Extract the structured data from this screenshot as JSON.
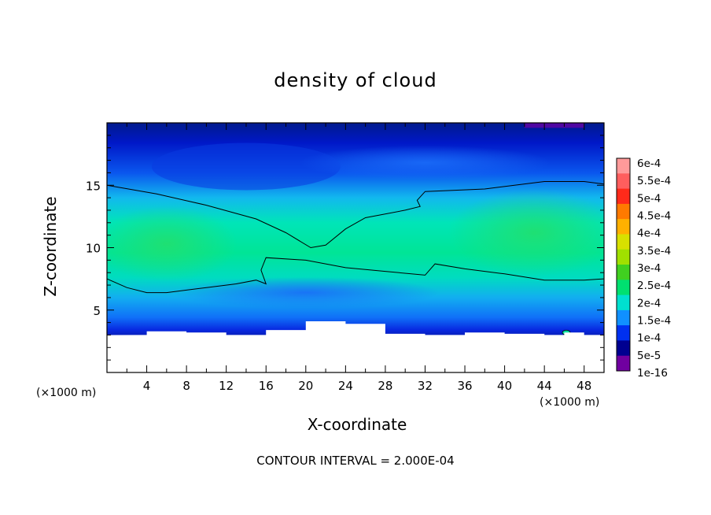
{
  "chart_data": {
    "type": "heatmap",
    "title": "density of cloud",
    "xlabel": "X-coordinate",
    "ylabel": "Z-coordinate",
    "x_unit": "(×1000 m)",
    "x_unit_right": "(×1000 m)",
    "xlim": [
      0,
      50
    ],
    "ylim": [
      0,
      20
    ],
    "x_ticks": [
      4,
      8,
      12,
      16,
      20,
      24,
      28,
      32,
      36,
      40,
      44,
      48
    ],
    "y_ticks": [
      5,
      10,
      15
    ],
    "colorbar_labels": [
      "6e-4",
      "5.5e-4",
      "5e-4",
      "4.5e-4",
      "4e-4",
      "3.5e-4",
      "3e-4",
      "2.5e-4",
      "2e-4",
      "1.5e-4",
      "1e-4",
      "5e-5",
      "1e-16"
    ],
    "colorbar_colors": [
      "#ff9a9a",
      "#ff5e5e",
      "#ff2a1a",
      "#ff7a00",
      "#ffb000",
      "#d8e000",
      "#a0e000",
      "#40d020",
      "#00e070",
      "#00e0d0",
      "#1090ff",
      "#0030f0",
      "#000090",
      "#7000a0"
    ],
    "contour_interval": "CONTOUR INTERVAL = 2.000E-04",
    "contour_line_level": 0.0002,
    "terrain_upper_edge": {
      "x": [
        0,
        4,
        8,
        12,
        16,
        20,
        24,
        28,
        32,
        36,
        40,
        44,
        46,
        48,
        50
      ],
      "z": [
        3.0,
        3.3,
        3.2,
        3.0,
        3.4,
        4.1,
        3.9,
        3.1,
        3.0,
        3.2,
        3.1,
        3.0,
        3.2,
        3.0,
        2.9
      ]
    }
  }
}
